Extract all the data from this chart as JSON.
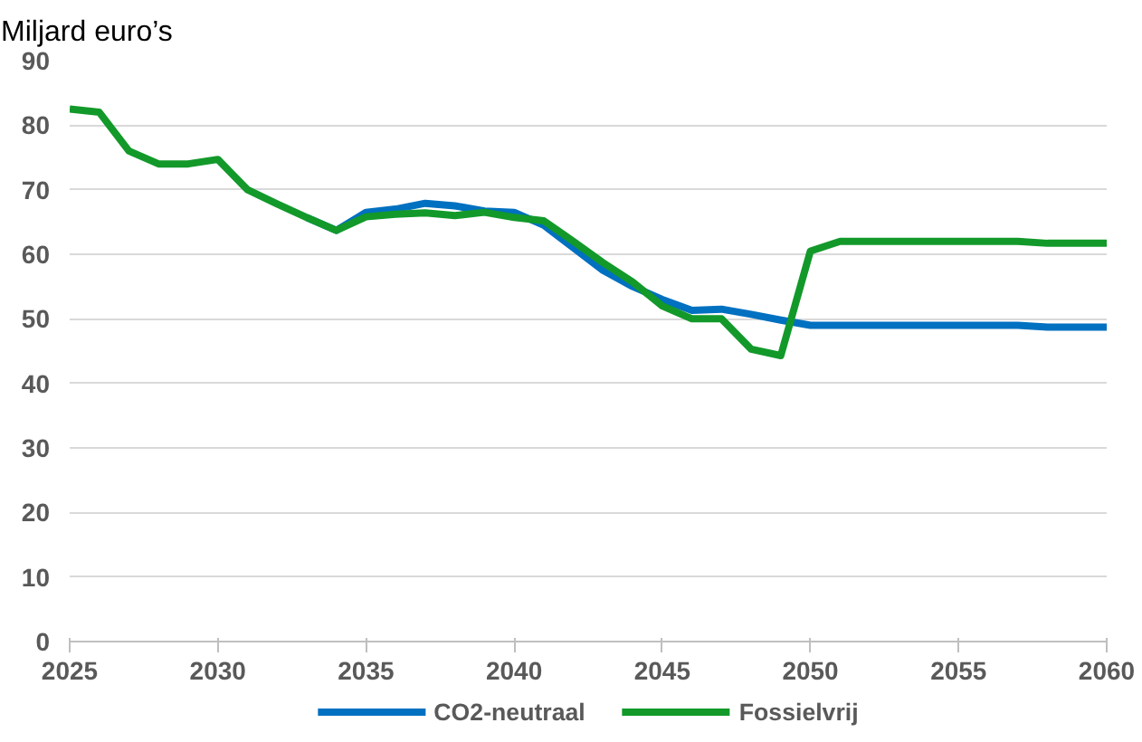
{
  "chart_data": {
    "type": "line",
    "ylabel": "Miljard euro’s",
    "x": [
      2025,
      2026,
      2027,
      2028,
      2029,
      2030,
      2031,
      2032,
      2033,
      2034,
      2035,
      2036,
      2037,
      2038,
      2039,
      2040,
      2041,
      2042,
      2043,
      2044,
      2045,
      2046,
      2047,
      2048,
      2049,
      2050,
      2051,
      2052,
      2053,
      2054,
      2055,
      2056,
      2057,
      2058,
      2059,
      2060
    ],
    "series": [
      {
        "name": "CO2-neutraal",
        "color": "#0070c0",
        "values": [
          null,
          null,
          null,
          null,
          null,
          null,
          null,
          null,
          65.7,
          63.7,
          66.5,
          67,
          67.9,
          67.5,
          66.7,
          66.5,
          64.5,
          61,
          57.5,
          55,
          53,
          51.3,
          51.5,
          50.7,
          49.8,
          49,
          49,
          49,
          49,
          49,
          49,
          49,
          49,
          48.7,
          48.7,
          48.7
        ]
      },
      {
        "name": "Fossielvrij",
        "color": "#12992a",
        "values": [
          82.5,
          82,
          76,
          74,
          74,
          74.7,
          70,
          67.8,
          65.7,
          63.7,
          65.8,
          66.2,
          66.4,
          66,
          66.5,
          65.7,
          65.2,
          62,
          58.7,
          55.7,
          52,
          50,
          50,
          45.3,
          44.3,
          60.5,
          62,
          62,
          62,
          62,
          62,
          62,
          62,
          61.7,
          61.7,
          61.7
        ]
      }
    ],
    "xlim": [
      2025,
      2060
    ],
    "xticks": [
      2025,
      2030,
      2035,
      2040,
      2045,
      2050,
      2055,
      2060
    ],
    "ylim": [
      0,
      90
    ],
    "yticks": [
      0,
      10,
      20,
      30,
      40,
      50,
      60,
      70,
      80,
      90
    ],
    "grid": "y",
    "legend": "bottom",
    "marker": "none",
    "line_style": "solid"
  }
}
